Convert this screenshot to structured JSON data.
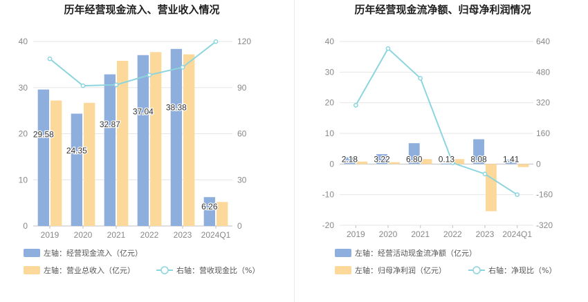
{
  "chart_data": [
    {
      "type": "bar",
      "title": "历年经营现金流入、营业收入情况",
      "categories": [
        "2019",
        "2020",
        "2021",
        "2022",
        "2023",
        "2024Q1"
      ],
      "left_axis": {
        "ylim": [
          0,
          40
        ],
        "ticks": [
          "0",
          "10",
          "20",
          "30",
          "40"
        ]
      },
      "right_axis": {
        "ylim": [
          0,
          120
        ],
        "ticks": [
          "0",
          "30",
          "60",
          "90",
          "120"
        ]
      },
      "series": [
        {
          "name": "左轴：经营现金流入（亿元）",
          "kind": "bar",
          "axis": "left",
          "color": "#8eaedd",
          "values": [
            29.58,
            24.35,
            32.87,
            37.04,
            38.38,
            6.26
          ],
          "labels": [
            "29.58",
            "24.35",
            "32.87",
            "37.04",
            "38.38",
            "6.26"
          ]
        },
        {
          "name": "左轴：营业总收入（亿元）",
          "kind": "bar",
          "axis": "left",
          "color": "#fcd99b",
          "values": [
            27.2,
            26.7,
            35.8,
            37.7,
            37.2,
            5.2
          ]
        },
        {
          "name": "右轴：营收现金比（%）",
          "kind": "line",
          "axis": "right",
          "color": "#8dd5de",
          "values": [
            108.7,
            91.2,
            91.8,
            98.2,
            103.2,
            119.9
          ]
        }
      ],
      "legend_position": "bottom-left",
      "grid": true
    },
    {
      "type": "bar",
      "title": "历年经营现金流净额、归母净利润情况",
      "categories": [
        "2019",
        "2020",
        "2021",
        "2022",
        "2023",
        "2024Q1"
      ],
      "left_axis": {
        "ylim": [
          -20,
          40
        ],
        "ticks": [
          "-20",
          "-10",
          "0",
          "10",
          "20",
          "30",
          "40"
        ]
      },
      "right_axis": {
        "ylim": [
          -320,
          640
        ],
        "ticks": [
          "-320",
          "-160",
          "0",
          "160",
          "320",
          "480",
          "640"
        ]
      },
      "series": [
        {
          "name": "左轴：经营活动现金流净额（亿元）",
          "kind": "bar",
          "axis": "left",
          "color": "#8eaedd",
          "values": [
            2.18,
            3.22,
            6.8,
            0.13,
            8.08,
            1.41
          ],
          "labels": [
            "2.18",
            "3.22",
            "6.80",
            "0.13",
            "8.08",
            "1.41"
          ]
        },
        {
          "name": "左轴：归母净利润（亿元）",
          "kind": "bar",
          "axis": "left",
          "color": "#fcd99b",
          "values": [
            0.8,
            0.6,
            1.6,
            1.6,
            -15.4,
            -1.0
          ]
        },
        {
          "name": "右轴：净现比（%）",
          "kind": "line",
          "axis": "right",
          "color": "#8dd5de",
          "values": [
            307,
            603,
            448,
            6,
            -52,
            -160
          ]
        }
      ],
      "legend_position": "bottom-left",
      "grid": true
    }
  ]
}
